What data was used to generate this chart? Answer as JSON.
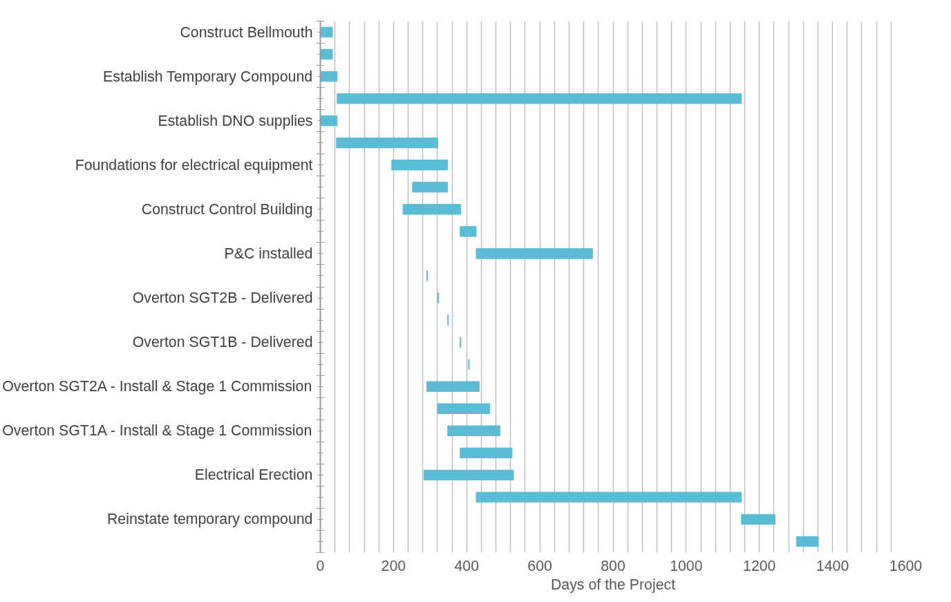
{
  "chart_data": {
    "type": "bar",
    "orientation": "horizontal",
    "xlabel": "Days of the Project",
    "categories": [
      "Construct Bellmouth",
      null,
      "Establish Temporary Compound",
      null,
      "Establish DNO supplies",
      null,
      "Foundations for electrical equipment",
      null,
      "Construct Control Building",
      null,
      "P&C installed",
      null,
      "Overton SGT2B - Delivered",
      null,
      "Overton SGT1B - Delivered",
      null,
      "Overton SGT2A - Install & Stage 1 Commission",
      null,
      "Overton SGT1A - Install & Stage 1 Commission",
      null,
      "Electrical Erection",
      null,
      "Reinstate temporary compound",
      null
    ],
    "base": [
      0,
      0,
      0,
      46,
      0,
      44,
      195,
      252,
      226,
      382,
      426,
      291,
      321,
      348,
      382,
      405,
      291,
      321,
      348,
      382,
      283,
      426,
      1151,
      1302
    ],
    "values": [
      33,
      33,
      46,
      1105,
      46,
      277,
      153,
      96,
      158,
      44,
      318,
      2,
      2,
      2,
      2,
      2,
      143,
      142,
      143,
      142,
      245,
      725,
      92,
      59
    ],
    "color": "#5bbcd6",
    "xlim": [
      0,
      1600
    ],
    "xticks": [
      0,
      {
        "value": 40,
        "label": null
      },
      {
        "value": 80,
        "label": null
      },
      {
        "value": 120,
        "label": null
      },
      {
        "value": 160,
        "label": null
      },
      200,
      {
        "value": 240,
        "label": null
      },
      {
        "value": 280,
        "label": null
      },
      {
        "value": 320,
        "label": null
      },
      {
        "value": 360,
        "label": null
      },
      400,
      {
        "value": 440,
        "label": null
      },
      {
        "value": 480,
        "label": null
      },
      {
        "value": 520,
        "label": null
      },
      {
        "value": 560,
        "label": null
      },
      600,
      {
        "value": 640,
        "label": null
      },
      {
        "value": 680,
        "label": null
      },
      {
        "value": 720,
        "label": null
      },
      {
        "value": 760,
        "label": null
      },
      800,
      {
        "value": 840,
        "label": null
      },
      {
        "value": 880,
        "label": null
      },
      {
        "value": 920,
        "label": null
      },
      {
        "value": 960,
        "label": null
      },
      1000,
      {
        "value": 1040,
        "label": null
      },
      {
        "value": 1080,
        "label": null
      },
      {
        "value": 1120,
        "label": null
      },
      {
        "value": 1160,
        "label": null
      },
      1200,
      {
        "value": 1240,
        "label": null
      },
      {
        "value": 1280,
        "label": null
      },
      {
        "value": 1320,
        "label": null
      },
      {
        "value": 1360,
        "label": null
      },
      1400,
      {
        "value": 1440,
        "label": null
      },
      {
        "value": 1480,
        "label": null
      },
      {
        "value": 1520,
        "label": null
      },
      {
        "value": 1560,
        "label": null
      },
      1600
    ],
    "grid": "x"
  }
}
